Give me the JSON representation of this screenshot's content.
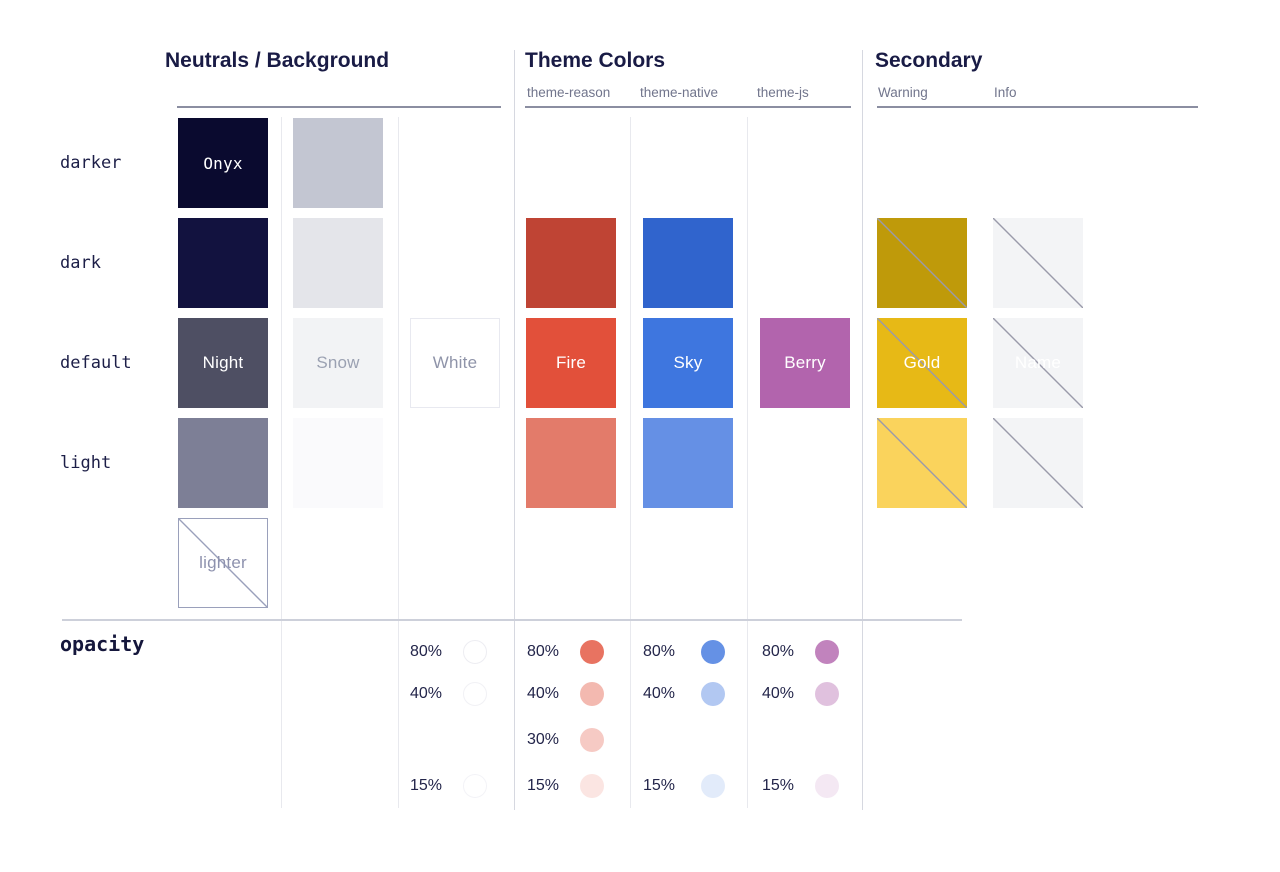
{
  "sections": {
    "neutrals": {
      "title": "Neutrals / Background"
    },
    "theme": {
      "title": "Theme Colors",
      "sub_labels": [
        "theme-reason",
        "theme-native",
        "theme-js"
      ]
    },
    "secondary": {
      "title": "Secondary",
      "sub_labels": [
        "Warning",
        "Info"
      ]
    }
  },
  "shade_labels": [
    "darker",
    "dark",
    "default",
    "light"
  ],
  "opacity_label": "opacity",
  "swatches": [
    {
      "col": 0,
      "row": "darker",
      "color": "#0a0a2f",
      "label": "Onyx",
      "label_color": "#ffffff",
      "label_font": "mono",
      "name": "onyx"
    },
    {
      "col": 0,
      "row": "dark",
      "color": "#12123f",
      "name": "neutral-dark"
    },
    {
      "col": 0,
      "row": "default",
      "color": "#4e4f63",
      "label": "Night",
      "label_color": "#ffffff",
      "name": "night"
    },
    {
      "col": 0,
      "row": "light",
      "color": "#7d7f96",
      "name": "neutral-light"
    },
    {
      "col": 0,
      "row": "lighter",
      "color": "#ffffff",
      "label": "lighter",
      "label_color": "#8e92ae",
      "border": "#9aa0bb",
      "diagonal": "#9aa0bb",
      "name": "lighter"
    },
    {
      "col": 1,
      "row": "darker",
      "color": "#c3c6d2",
      "name": "background-darker"
    },
    {
      "col": 1,
      "row": "dark",
      "color": "#e4e5ea",
      "name": "background-dark"
    },
    {
      "col": 1,
      "row": "default",
      "color": "#f2f3f5",
      "label": "Snow",
      "label_color": "#9ba1b2",
      "name": "snow"
    },
    {
      "col": 1,
      "row": "light",
      "color": "#fafafc",
      "name": "background-light"
    },
    {
      "col": 2,
      "row": "default",
      "color": "#ffffff",
      "label": "White",
      "label_color": "#8f94a9",
      "border": "#e8e9f0",
      "name": "white"
    },
    {
      "col": 3,
      "row": "dark",
      "color": "#bf4434",
      "name": "fire-dark"
    },
    {
      "col": 3,
      "row": "default",
      "color": "#e2503a",
      "label": "Fire",
      "label_color": "#ffffff",
      "name": "fire"
    },
    {
      "col": 3,
      "row": "light",
      "color": "#e37b6a",
      "name": "fire-light"
    },
    {
      "col": 4,
      "row": "dark",
      "color": "#3064cd",
      "name": "sky-dark"
    },
    {
      "col": 4,
      "row": "default",
      "color": "#3e76df",
      "label": "Sky",
      "label_color": "#ffffff",
      "name": "sky"
    },
    {
      "col": 4,
      "row": "light",
      "color": "#6590e5",
      "name": "sky-light"
    },
    {
      "col": 5,
      "row": "default",
      "color": "#b264ad",
      "label": "Berry",
      "label_color": "#ffffff",
      "name": "berry"
    },
    {
      "col": 6,
      "row": "dark",
      "color": "#bf9a0a",
      "diagonal": "#9a9aaa",
      "name": "warning-dark"
    },
    {
      "col": 6,
      "row": "default",
      "color": "#e7b916",
      "label": "Gold",
      "label_color": "#ffffff",
      "diagonal": "#9a9aaa",
      "name": "gold"
    },
    {
      "col": 6,
      "row": "light",
      "color": "#fad35c",
      "diagonal": "#9a9aaa",
      "name": "warning-light"
    },
    {
      "col": 7,
      "row": "dark",
      "color": "#f3f4f6",
      "diagonal": "#9a9aaa",
      "name": "info-dark"
    },
    {
      "col": 7,
      "row": "default",
      "color": "#f3f4f6",
      "label": "Name",
      "label_color": "#ffffff",
      "diagonal": "#9a9aaa",
      "name": "info"
    },
    {
      "col": 7,
      "row": "light",
      "color": "#f3f4f6",
      "diagonal": "#9a9aaa",
      "name": "info-light"
    }
  ],
  "opacity_groups": [
    {
      "col": 2,
      "name": "white",
      "items": [
        {
          "label": "80%",
          "slot": 0,
          "color": "#ffffff",
          "ring": "#ededf2"
        },
        {
          "label": "40%",
          "slot": 1,
          "color": "#ffffff",
          "ring": "#f1f1f5"
        },
        {
          "label": "15%",
          "slot": 3,
          "color": "#ffffff",
          "ring": "#f3f3f7"
        }
      ]
    },
    {
      "col": 3,
      "name": "fire",
      "items": [
        {
          "label": "80%",
          "slot": 0,
          "color": "rgba(226,80,58,0.8)"
        },
        {
          "label": "40%",
          "slot": 1,
          "color": "rgba(226,80,58,0.4)"
        },
        {
          "label": "30%",
          "slot": 2,
          "color": "rgba(226,80,58,0.3)"
        },
        {
          "label": "15%",
          "slot": 3,
          "color": "rgba(226,80,58,0.15)"
        }
      ]
    },
    {
      "col": 4,
      "name": "sky",
      "items": [
        {
          "label": "80%",
          "slot": 0,
          "color": "rgba(62,118,223,0.8)"
        },
        {
          "label": "40%",
          "slot": 1,
          "color": "rgba(62,118,223,0.4)"
        },
        {
          "label": "15%",
          "slot": 3,
          "color": "rgba(62,118,223,0.15)"
        }
      ]
    },
    {
      "col": 5,
      "name": "berry",
      "items": [
        {
          "label": "80%",
          "slot": 0,
          "color": "rgba(178,100,173,0.8)"
        },
        {
          "label": "40%",
          "slot": 1,
          "color": "rgba(178,100,173,0.4)"
        },
        {
          "label": "15%",
          "slot": 3,
          "color": "rgba(178,100,173,0.15)"
        }
      ]
    }
  ]
}
